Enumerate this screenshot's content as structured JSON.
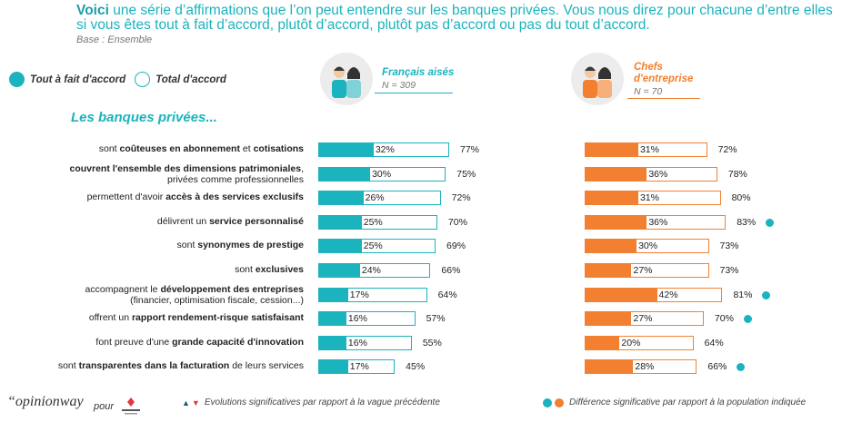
{
  "question": {
    "lead": "Voici",
    "text": " une série d’affirmations que l’on peut entendre sur les banques privées. Vous nous direz pour chacune d’entre elles si vous êtes tout à fait d’accord, plutôt d’accord, plutôt pas d’accord ou pas du tout d’accord."
  },
  "base": "Base : Ensemble",
  "legend": {
    "filled": "Tout à fait d'accord",
    "ring": "Total d'accord"
  },
  "groups": [
    {
      "title": "Français aisés",
      "n": "N = 309",
      "color": "#1bb3bd"
    },
    {
      "title_line1": "Chefs",
      "title_line2": "d'entreprise",
      "n": "N = 70",
      "color": "#f28030"
    }
  ],
  "subtitle": "Les banques privées...",
  "chart_data": {
    "type": "bar",
    "categories": [
      {
        "pre": "sont ",
        "bold": "coûteuses en abonnement",
        "post": " et ",
        "bold2": "cotisations",
        "line2": ""
      },
      {
        "pre": "",
        "bold": "couvrent l'ensemble des dimensions patrimoniales",
        "post": ",",
        "bold2": "",
        "line2": "privées comme professionnelles"
      },
      {
        "pre": "permettent d'avoir ",
        "bold": "accès à des services exclusifs",
        "post": "",
        "bold2": "",
        "line2": ""
      },
      {
        "pre": "délivrent un ",
        "bold": "service personnalisé",
        "post": "",
        "bold2": "",
        "line2": ""
      },
      {
        "pre": "sont ",
        "bold": "synonymes de prestige",
        "post": "",
        "bold2": "",
        "line2": ""
      },
      {
        "pre": "sont ",
        "bold": "exclusives",
        "post": "",
        "bold2": "",
        "line2": ""
      },
      {
        "pre": "accompagnent le ",
        "bold": "développement des entreprises",
        "post": "",
        "bold2": "",
        "line2": "(financier, optimisation fiscale, cession...)"
      },
      {
        "pre": "offrent un ",
        "bold": "rapport rendement-risque satisfaisant",
        "post": "",
        "bold2": "",
        "line2": ""
      },
      {
        "pre": "font preuve d'une ",
        "bold": "grande capacité d'innovation",
        "post": "",
        "bold2": "",
        "line2": ""
      },
      {
        "pre": "sont ",
        "bold": "transparentes dans la facturation",
        "post": " de leurs services",
        "bold2": "",
        "line2": ""
      }
    ],
    "series": [
      {
        "name": "Français aisés",
        "tout_a_fait": [
          32,
          30,
          26,
          25,
          25,
          24,
          17,
          16,
          16,
          17
        ],
        "total": [
          77,
          75,
          72,
          70,
          69,
          66,
          64,
          57,
          55,
          45
        ],
        "significant": [
          false,
          false,
          false,
          false,
          false,
          false,
          false,
          false,
          false,
          false
        ]
      },
      {
        "name": "Chefs d'entreprise",
        "tout_a_fait": [
          31,
          36,
          31,
          36,
          30,
          27,
          42,
          27,
          20,
          28
        ],
        "total": [
          72,
          78,
          80,
          83,
          73,
          73,
          81,
          70,
          64,
          66
        ],
        "significant": [
          false,
          false,
          false,
          true,
          false,
          false,
          true,
          true,
          false,
          true
        ]
      }
    ],
    "unit": "%",
    "xlim": [
      0,
      100
    ],
    "colors": {
      "teal": "#1bb3bd",
      "orange": "#f28030"
    }
  },
  "footer": {
    "brand": "opinionway",
    "pour": "pour",
    "evolution": "Evolutions significatives par rapport à la vague précédente",
    "difference": "Différence significative par rapport à la population indiquée"
  }
}
